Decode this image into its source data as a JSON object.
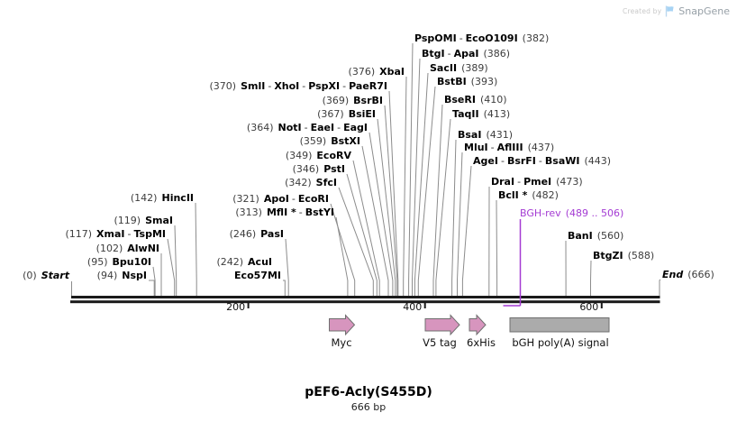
{
  "watermark": {
    "created_by": "Created by",
    "brand": "SnapGene"
  },
  "title": {
    "name": "pEF6-Acly(S455D)",
    "length": "666 bp"
  },
  "ruler": {
    "ticks": [
      "200",
      "400",
      "600"
    ]
  },
  "features": [
    {
      "label": "Myc",
      "shape": "arrow-right"
    },
    {
      "label": "V5 tag",
      "shape": "arrow-right"
    },
    {
      "label": "6xHis",
      "shape": "arrow-right"
    },
    {
      "label": "bGH poly(A) signal",
      "shape": "box"
    }
  ],
  "sites": [
    {
      "id": "start",
      "bp": 0,
      "pos": "(0)",
      "names": [
        "Start"
      ],
      "style": "boundary",
      "side": "left"
    },
    {
      "id": "nspI",
      "bp": 94,
      "pos": "(94)",
      "names": [
        "NspI"
      ],
      "style": "enzyme",
      "side": "left"
    },
    {
      "id": "bpu10I",
      "bp": 95,
      "pos": "(95)",
      "names": [
        "Bpu10I"
      ],
      "style": "enzyme",
      "side": "left"
    },
    {
      "id": "alwNI",
      "bp": 102,
      "pos": "(102)",
      "names": [
        "AlwNI"
      ],
      "style": "enzyme",
      "side": "left"
    },
    {
      "id": "xmaI",
      "bp": 117,
      "pos": "(117)",
      "names": [
        "XmaI",
        "TspMI"
      ],
      "style": "enzyme",
      "side": "left"
    },
    {
      "id": "smaI",
      "bp": 119,
      "pos": "(119)",
      "names": [
        "SmaI"
      ],
      "style": "enzyme",
      "side": "left"
    },
    {
      "id": "hincII",
      "bp": 142,
      "pos": "(142)",
      "names": [
        "HincII"
      ],
      "style": "enzyme",
      "side": "left"
    },
    {
      "id": "acuI",
      "bp": 242,
      "pos": "(242)",
      "names": [
        "AcuI"
      ],
      "style": "enzyme",
      "side": "left"
    },
    {
      "id": "eco57MI",
      "bp": 242,
      "pos": "",
      "names": [
        "Eco57MI"
      ],
      "style": "enzyme",
      "side": "left"
    },
    {
      "id": "pasI",
      "bp": 246,
      "pos": "(246)",
      "names": [
        "PasI"
      ],
      "style": "enzyme",
      "side": "left"
    },
    {
      "id": "mflI",
      "bp": 313,
      "pos": "(313)",
      "names": [
        "MflI *",
        "BstYI"
      ],
      "style": "enzyme",
      "side": "left"
    },
    {
      "id": "apoI",
      "bp": 321,
      "pos": "(321)",
      "names": [
        "ApoI",
        "EcoRI"
      ],
      "style": "enzyme",
      "side": "left"
    },
    {
      "id": "sfcI",
      "bp": 342,
      "pos": "(342)",
      "names": [
        "SfcI"
      ],
      "style": "enzyme",
      "side": "left"
    },
    {
      "id": "pstI",
      "bp": 346,
      "pos": "(346)",
      "names": [
        "PstI"
      ],
      "style": "enzyme",
      "side": "left"
    },
    {
      "id": "ecoRV",
      "bp": 349,
      "pos": "(349)",
      "names": [
        "EcoRV"
      ],
      "style": "enzyme",
      "side": "left"
    },
    {
      "id": "bstXI",
      "bp": 359,
      "pos": "(359)",
      "names": [
        "BstXI"
      ],
      "style": "enzyme",
      "side": "left"
    },
    {
      "id": "notI",
      "bp": 364,
      "pos": "(364)",
      "names": [
        "NotI",
        "EaeI",
        "EagI"
      ],
      "style": "enzyme",
      "side": "left"
    },
    {
      "id": "bsiEI",
      "bp": 367,
      "pos": "(367)",
      "names": [
        "BsiEI"
      ],
      "style": "enzyme",
      "side": "left"
    },
    {
      "id": "bsrBI",
      "bp": 369,
      "pos": "(369)",
      "names": [
        "BsrBI"
      ],
      "style": "enzyme",
      "side": "left"
    },
    {
      "id": "smlI",
      "bp": 370,
      "pos": "(370)",
      "names": [
        "SmlI",
        "XhoI",
        "PspXI",
        "PaeR7I"
      ],
      "style": "enzyme",
      "side": "left"
    },
    {
      "id": "xbaI",
      "bp": 376,
      "pos": "(376)",
      "names": [
        "XbaI"
      ],
      "style": "enzyme",
      "side": "left"
    },
    {
      "id": "pspOMI",
      "bp": 382,
      "pos": "(382)",
      "names": [
        "PspOMI",
        "EcoO109I"
      ],
      "style": "enzyme",
      "side": "right"
    },
    {
      "id": "btgI",
      "bp": 386,
      "pos": "(386)",
      "names": [
        "BtgI",
        "ApaI"
      ],
      "style": "enzyme",
      "side": "right"
    },
    {
      "id": "sacII",
      "bp": 389,
      "pos": "(389)",
      "names": [
        "SacII"
      ],
      "style": "enzyme",
      "side": "right"
    },
    {
      "id": "bstBI",
      "bp": 393,
      "pos": "(393)",
      "names": [
        "BstBI"
      ],
      "style": "enzyme",
      "side": "right"
    },
    {
      "id": "bseRI",
      "bp": 410,
      "pos": "(410)",
      "names": [
        "BseRI"
      ],
      "style": "enzyme",
      "side": "right"
    },
    {
      "id": "taqII",
      "bp": 413,
      "pos": "(413)",
      "names": [
        "TaqII"
      ],
      "style": "enzyme",
      "side": "right"
    },
    {
      "id": "bsaI",
      "bp": 431,
      "pos": "(431)",
      "names": [
        "BsaI"
      ],
      "style": "enzyme",
      "side": "right"
    },
    {
      "id": "mluI",
      "bp": 437,
      "pos": "(437)",
      "names": [
        "MluI",
        "AflIII"
      ],
      "style": "enzyme",
      "side": "right"
    },
    {
      "id": "ageI",
      "bp": 443,
      "pos": "(443)",
      "names": [
        "AgeI",
        "BsrFI",
        "BsaWI"
      ],
      "style": "enzyme",
      "side": "right"
    },
    {
      "id": "draI",
      "bp": 473,
      "pos": "(473)",
      "names": [
        "DraI",
        "PmeI"
      ],
      "style": "enzyme",
      "side": "right"
    },
    {
      "id": "bclI",
      "bp": 482,
      "pos": "(482)",
      "names": [
        "BclI *"
      ],
      "style": "enzyme",
      "side": "right"
    },
    {
      "id": "bghRev",
      "bp": 506,
      "pos": "(489 .. 506)",
      "names": [
        "BGH-rev"
      ],
      "style": "primer",
      "side": "right"
    },
    {
      "id": "banI",
      "bp": 560,
      "pos": "(560)",
      "names": [
        "BanI"
      ],
      "style": "enzyme",
      "side": "right"
    },
    {
      "id": "btgZI",
      "bp": 588,
      "pos": "(588)",
      "names": [
        "BtgZI"
      ],
      "style": "enzyme",
      "side": "right"
    },
    {
      "id": "end",
      "bp": 666,
      "pos": "(666)",
      "names": [
        "End"
      ],
      "style": "boundary",
      "side": "right"
    }
  ],
  "colors": {
    "primer": "#A43BD3",
    "connector": "#8C8C8C",
    "line": "#1A1A1A",
    "feature_fill": "#D795BE",
    "feature_stroke": "#6F6F6F",
    "signal_fill": "#ABABAB",
    "signal_stroke": "#6F6F6F",
    "brand_blue": "#A7D3F4"
  }
}
